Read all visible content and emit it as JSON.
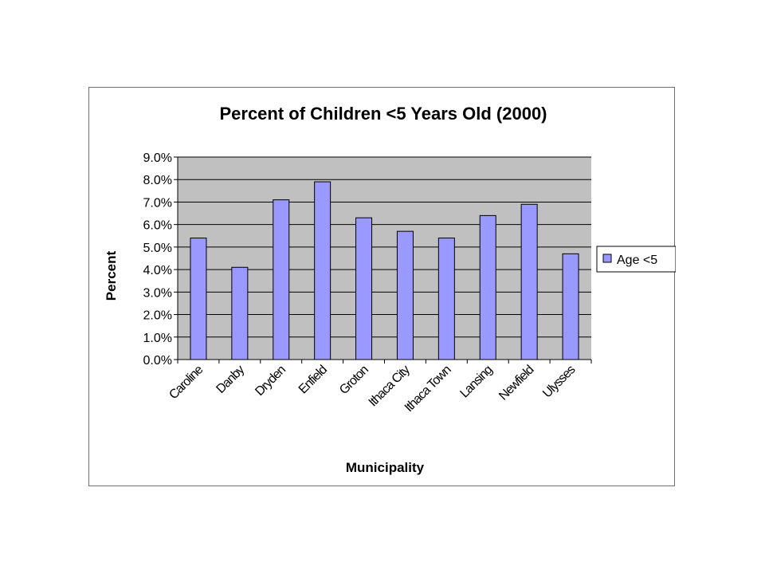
{
  "chart_data": {
    "type": "bar",
    "title": "Percent of Children <5 Years Old (2000)",
    "xlabel": "Municipality",
    "ylabel": "Percent",
    "categories": [
      "Caroline",
      "Danby",
      "Dryden",
      "Enfield",
      "Groton",
      "Ithaca City",
      "Ithaca Town",
      "Lansing",
      "Newfield",
      "Ulysses"
    ],
    "series": [
      {
        "name": "Age <5",
        "values": [
          5.4,
          4.1,
          7.1,
          7.9,
          6.3,
          5.7,
          5.4,
          6.4,
          6.9,
          4.7
        ]
      }
    ],
    "ylim": [
      0,
      9
    ],
    "yticks": [
      "0.0%",
      "1.0%",
      "2.0%",
      "3.0%",
      "4.0%",
      "5.0%",
      "6.0%",
      "7.0%",
      "8.0%",
      "9.0%"
    ],
    "grid": true,
    "legend_position": "right",
    "colors": {
      "bar": "#9999ff",
      "bar_stroke": "#000000",
      "plot_bg": "#c0c0c0",
      "grid": "#000000"
    }
  }
}
